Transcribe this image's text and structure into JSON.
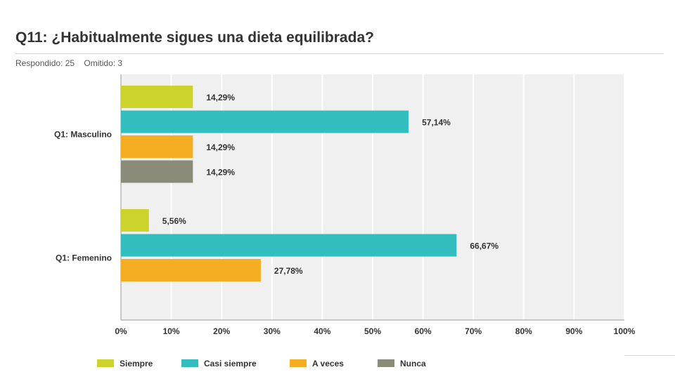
{
  "header": {
    "title": "Q11: ¿Habitualmente sigues una dieta equilibrada?",
    "answered": "Respondido: 25",
    "skipped": "Omitido: 3"
  },
  "chart_data": {
    "type": "bar",
    "orientation": "horizontal",
    "categories": [
      "Q1: Masculino",
      "Q1: Femenino"
    ],
    "series": [
      {
        "name": "Siempre",
        "color": "#ccd42c",
        "values": [
          14.29,
          5.56
        ],
        "labels": [
          "14,29%",
          "5,56%"
        ]
      },
      {
        "name": "Casi siempre",
        "color": "#33bdbe",
        "values": [
          57.14,
          66.67
        ],
        "labels": [
          "57,14%",
          "66,67%"
        ]
      },
      {
        "name": "A veces",
        "color": "#f5ae22",
        "values": [
          14.29,
          27.78
        ],
        "labels": [
          "14,29%",
          "27,78%"
        ]
      },
      {
        "name": "Nunca",
        "color": "#8a8b79",
        "values": [
          14.29,
          null
        ],
        "labels": [
          "14,29%",
          ""
        ]
      }
    ],
    "xlim": [
      0,
      100
    ],
    "xticks": [
      "0%",
      "10%",
      "20%",
      "30%",
      "40%",
      "50%",
      "60%",
      "70%",
      "80%",
      "90%",
      "100%"
    ],
    "grid": true,
    "legend": "bottom",
    "plot_background": "#f0f0f0"
  }
}
